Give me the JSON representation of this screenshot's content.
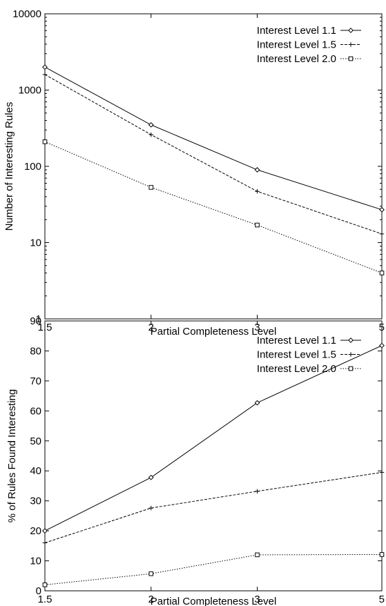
{
  "chart_data": [
    {
      "type": "line",
      "title": "",
      "xlabel": "Partial Completeness Level",
      "ylabel": "Number of Interesting Rules",
      "yscale": "log",
      "x": [
        1.5,
        2,
        3,
        5
      ],
      "x_tick_labels": [
        "1.5",
        "2",
        "3",
        "5"
      ],
      "y_ticks": [
        1,
        10,
        100,
        1000,
        10000
      ],
      "y_tick_labels": [
        "1",
        "10",
        "100",
        "1000",
        "10000"
      ],
      "ylim": [
        1,
        10000
      ],
      "grid": false,
      "legend_position": "top-right",
      "series": [
        {
          "name": "Interest Level 1.1",
          "values": [
            2000,
            350,
            90,
            27
          ],
          "marker": "diamond",
          "dash": "solid"
        },
        {
          "name": "Interest Level 1.5",
          "values": [
            1600,
            260,
            47,
            13
          ],
          "marker": "plus",
          "dash": "dashed"
        },
        {
          "name": "Interest Level 2.0",
          "values": [
            210,
            53,
            17,
            4
          ],
          "marker": "square",
          "dash": "dotted"
        }
      ]
    },
    {
      "type": "line",
      "title": "",
      "xlabel": "Partial Completeness Level",
      "ylabel": "% of Rules Found Interesting",
      "yscale": "linear",
      "x": [
        1.5,
        2,
        3,
        5
      ],
      "x_tick_labels": [
        "1.5",
        "2",
        "3",
        "5"
      ],
      "y_ticks": [
        0,
        10,
        20,
        30,
        40,
        50,
        60,
        70,
        80,
        90
      ],
      "y_tick_labels": [
        "0",
        "10",
        "20",
        "30",
        "40",
        "50",
        "60",
        "70",
        "80",
        "90"
      ],
      "ylim": [
        0,
        90
      ],
      "grid": false,
      "legend_position": "top-right",
      "series": [
        {
          "name": "Interest Level 1.1",
          "values": [
            20,
            37.8,
            62.7,
            81.8
          ],
          "marker": "diamond",
          "dash": "solid"
        },
        {
          "name": "Interest Level 1.5",
          "values": [
            16,
            27.6,
            33.2,
            39.5
          ],
          "marker": "plus",
          "dash": "dashed"
        },
        {
          "name": "Interest Level 2.0",
          "values": [
            2,
            5.7,
            12,
            12.1
          ],
          "marker": "square",
          "dash": "dotted"
        }
      ]
    }
  ]
}
